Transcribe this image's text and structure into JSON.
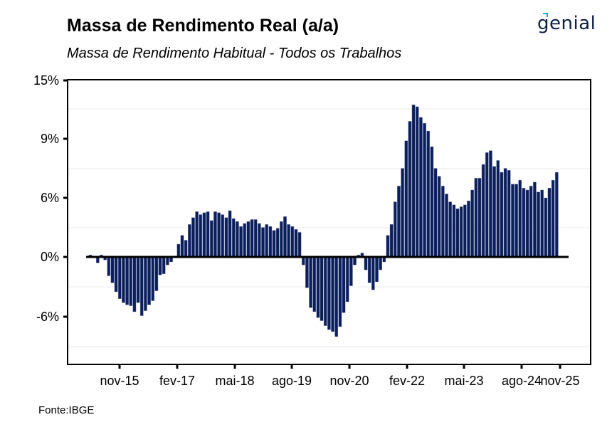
{
  "header": {
    "title": "Massa de Rendimento Real (a/a)",
    "subtitle": "Massa de Rendimento Habitual - Todos os Trabalhos",
    "logo_text": "genial"
  },
  "footer": {
    "source": "Fonte:IBGE"
  },
  "colors": {
    "bar": "#0b1f5c",
    "bar_edge": "#8a93b8",
    "zero_line": "#000000",
    "grid": "#ebebeb"
  },
  "chart_data": {
    "type": "bar",
    "title": "Massa de Rendimento Real (a/a)",
    "subtitle": "Massa de Rendimento Habitual - Todos os Trabalhos",
    "xlabel": "",
    "ylabel": "",
    "y_ticks": [
      {
        "value": 15,
        "label": "15%"
      },
      {
        "value": 9,
        "label": "9%"
      },
      {
        "value": 6,
        "label": "6%"
      },
      {
        "value": 0,
        "label": "0%"
      },
      {
        "value": -6,
        "label": "-6%"
      }
    ],
    "x_ticks": [
      "nov-15",
      "fev-17",
      "mai-18",
      "ago-19",
      "nov-20",
      "fev-22",
      "mai-23",
      "ago-24",
      "nov-25"
    ],
    "grid": true,
    "legend": "none",
    "first_period": "mar-15",
    "values": [
      0.2,
      -0.1,
      -0.6,
      0.2,
      -0.3,
      -1.9,
      -2.6,
      -3.5,
      -4.2,
      -4.6,
      -4.8,
      -4.9,
      -5.5,
      -4.6,
      -5.9,
      -5.4,
      -4.8,
      -4.4,
      -3.4,
      -1.8,
      -1.7,
      -0.8,
      -0.5,
      -0.1,
      1.3,
      2.2,
      1.7,
      3.3,
      4.0,
      4.6,
      4.3,
      4.5,
      4.6,
      3.7,
      4.6,
      4.5,
      4.3,
      4.0,
      4.7,
      3.9,
      3.6,
      3.1,
      3.4,
      3.6,
      3.8,
      3.8,
      3.4,
      3.0,
      3.3,
      3.1,
      2.7,
      2.9,
      3.6,
      4.1,
      3.3,
      3.1,
      2.8,
      2.5,
      -0.8,
      -3.1,
      -5.1,
      -5.5,
      -6.1,
      -6.4,
      -6.9,
      -7.3,
      -7.5,
      -8.0,
      -7.0,
      -5.6,
      -4.5,
      -2.9,
      -0.8,
      0.2,
      0.4,
      -1.3,
      -2.6,
      -3.3,
      -2.5,
      -1.3,
      -0.5,
      2.2,
      3.3,
      5.6,
      6.6,
      7.5,
      8.9,
      10.8,
      12.5,
      12.3,
      11.2,
      10.6,
      9.8,
      8.6,
      7.5,
      7.1,
      6.6,
      6.2,
      5.6,
      5.3,
      4.9,
      5.1,
      5.3,
      5.7,
      6.4,
      7.0,
      7.0,
      7.7,
      8.3,
      8.4,
      7.6,
      7.9,
      7.3,
      7.5,
      7.4,
      6.7,
      6.7,
      6.9,
      6.5,
      6.4,
      6.6,
      6.8,
      6.3,
      6.4,
      6.0,
      6.5,
      6.9,
      7.3
    ]
  }
}
